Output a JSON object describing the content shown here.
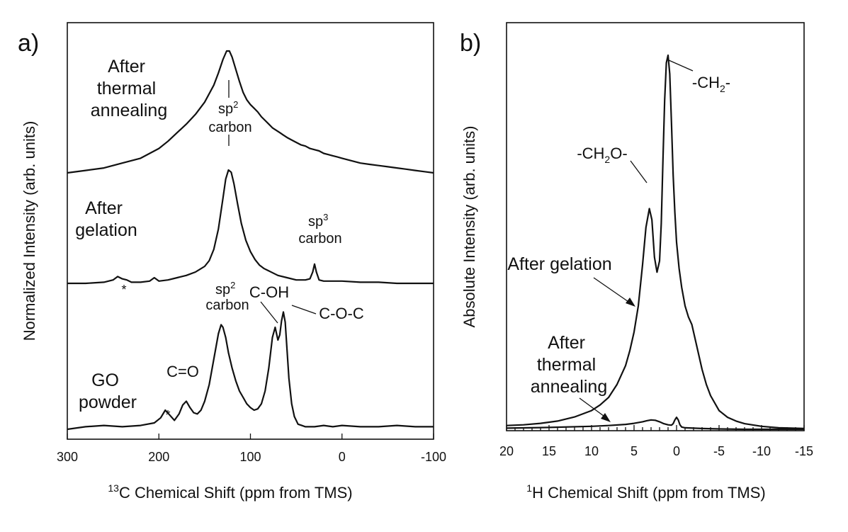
{
  "chart_data": [
    {
      "type": "line",
      "panel_label": "a)",
      "xlabel_sup": "13",
      "xlabel": "C Chemical Shift (ppm from TMS)",
      "ylabel": "Normalized Intensity (arb. units)",
      "xlim": [
        300,
        -100
      ],
      "xticks": [
        300,
        200,
        100,
        0,
        -100
      ],
      "xtick_labels": [
        "300",
        "200",
        "100",
        "0",
        "-100"
      ],
      "series": [
        {
          "name": "After thermal annealing",
          "label_lines": [
            "After",
            "thermal",
            "annealing"
          ],
          "baseline": 0.0,
          "x": [
            300,
            280,
            260,
            240,
            220,
            200,
            190,
            180,
            170,
            160,
            150,
            140,
            135,
            130,
            126,
            123,
            120,
            116,
            112,
            108,
            104,
            100,
            96,
            92,
            88,
            84,
            80,
            76,
            72,
            68,
            64,
            60,
            55,
            50,
            45,
            40,
            35,
            30,
            25,
            20,
            15,
            10,
            5,
            0,
            -10,
            -20,
            -30,
            -40,
            -50,
            -60,
            -70,
            -80,
            -90,
            -100
          ],
          "y": [
            0.0,
            0.02,
            0.04,
            0.08,
            0.12,
            0.2,
            0.26,
            0.33,
            0.4,
            0.48,
            0.58,
            0.72,
            0.82,
            0.93,
            1.0,
            1.0,
            0.95,
            0.85,
            0.75,
            0.66,
            0.6,
            0.56,
            0.53,
            0.5,
            0.46,
            0.43,
            0.4,
            0.37,
            0.35,
            0.33,
            0.31,
            0.29,
            0.27,
            0.25,
            0.23,
            0.22,
            0.2,
            0.19,
            0.18,
            0.16,
            0.15,
            0.14,
            0.13,
            0.12,
            0.1,
            0.08,
            0.07,
            0.06,
            0.05,
            0.04,
            0.03,
            0.02,
            0.01,
            0.0
          ]
        },
        {
          "name": "After gelation",
          "label_lines": [
            "After",
            "gelation"
          ],
          "baseline": 0.0,
          "x": [
            300,
            280,
            260,
            250,
            245,
            240,
            235,
            230,
            220,
            210,
            205,
            200,
            190,
            180,
            170,
            160,
            150,
            145,
            140,
            135,
            130,
            127,
            124,
            121,
            118,
            114,
            110,
            105,
            100,
            95,
            90,
            85,
            80,
            70,
            60,
            50,
            40,
            35,
            32,
            30,
            28,
            25,
            20,
            10,
            0,
            -20,
            -40,
            -60,
            -80,
            -100
          ],
          "y": [
            0.0,
            0.0,
            0.01,
            0.03,
            0.06,
            0.04,
            0.03,
            0.01,
            0.01,
            0.02,
            0.05,
            0.02,
            0.03,
            0.05,
            0.07,
            0.1,
            0.15,
            0.2,
            0.3,
            0.48,
            0.75,
            0.92,
            1.0,
            0.98,
            0.88,
            0.7,
            0.53,
            0.38,
            0.28,
            0.21,
            0.16,
            0.13,
            0.11,
            0.07,
            0.05,
            0.03,
            0.03,
            0.04,
            0.1,
            0.17,
            0.1,
            0.03,
            0.02,
            0.02,
            0.02,
            0.01,
            0.01,
            0.0,
            0.0,
            0.0
          ]
        },
        {
          "name": "GO powder",
          "label_lines": [
            "GO",
            "powder"
          ],
          "baseline": 0.0,
          "x": [
            300,
            280,
            260,
            240,
            220,
            205,
            198,
            193,
            188,
            183,
            178,
            174,
            170,
            166,
            162,
            158,
            154,
            150,
            145,
            140,
            135,
            132,
            130,
            127,
            124,
            120,
            116,
            112,
            108,
            104,
            100,
            96,
            92,
            88,
            84,
            80,
            76,
            73,
            70,
            68,
            66,
            64,
            62,
            60,
            58,
            55,
            52,
            48,
            44,
            40,
            30,
            20,
            10,
            0,
            -20,
            -40,
            -60,
            -80,
            -100
          ],
          "y": [
            0.0,
            0.02,
            0.03,
            0.02,
            0.03,
            0.05,
            0.09,
            0.15,
            0.11,
            0.07,
            0.12,
            0.19,
            0.22,
            0.17,
            0.13,
            0.12,
            0.15,
            0.22,
            0.35,
            0.55,
            0.75,
            0.82,
            0.8,
            0.72,
            0.6,
            0.48,
            0.38,
            0.3,
            0.25,
            0.2,
            0.17,
            0.15,
            0.16,
            0.2,
            0.3,
            0.48,
            0.72,
            0.8,
            0.7,
            0.74,
            0.85,
            0.92,
            0.84,
            0.62,
            0.4,
            0.2,
            0.1,
            0.04,
            0.03,
            0.02,
            0.02,
            0.03,
            0.02,
            0.03,
            0.02,
            0.02,
            0.03,
            0.02,
            0.02
          ]
        }
      ],
      "annotations": [
        {
          "text": "sp",
          "sup": "2",
          "line2": "carbon",
          "note": "sp2 carbon (thermal annealing)"
        },
        {
          "text": "sp",
          "sup": "3",
          "line2": "carbon",
          "note": "sp3 carbon (gelation)"
        },
        {
          "text": "sp",
          "sup": "2",
          "line2": "carbon",
          "note": "sp2 carbon (GO powder)"
        },
        {
          "text": "C-OH"
        },
        {
          "text": "C-O-C"
        },
        {
          "text": "C=O"
        },
        {
          "text": "*"
        },
        {
          "text": "*"
        }
      ]
    },
    {
      "type": "line",
      "panel_label": "b)",
      "xlabel_sup": "1",
      "xlabel": "H  Chemical Shift (ppm from TMS)",
      "ylabel": "Absolute Intensity (arb. units)",
      "xlim": [
        20,
        -15
      ],
      "xticks": [
        20,
        15,
        10,
        5,
        0,
        -5,
        -10,
        -15
      ],
      "xtick_labels": [
        "20",
        "15",
        "10",
        "5",
        "0",
        "-5",
        "-10",
        "-15"
      ],
      "ylim": [
        0,
        1.0
      ],
      "series": [
        {
          "name": "After gelation",
          "x": [
            20,
            18,
            16,
            14,
            12,
            10,
            9,
            8,
            7,
            6,
            5.5,
            5,
            4.5,
            4,
            3.6,
            3.2,
            2.9,
            2.6,
            2.3,
            2.0,
            1.8,
            1.6,
            1.4,
            1.2,
            1.0,
            0.8,
            0.6,
            0.4,
            0.2,
            0.0,
            -0.3,
            -0.6,
            -1.0,
            -1.4,
            -1.8,
            -2.2,
            -2.6,
            -3.0,
            -3.5,
            -4,
            -5,
            -6,
            -7,
            -8,
            -10,
            -12,
            -15
          ],
          "y": [
            0.01,
            0.012,
            0.016,
            0.022,
            0.033,
            0.05,
            0.065,
            0.085,
            0.12,
            0.17,
            0.21,
            0.26,
            0.33,
            0.44,
            0.54,
            0.59,
            0.56,
            0.46,
            0.42,
            0.45,
            0.55,
            0.72,
            0.88,
            0.98,
            1.0,
            0.95,
            0.82,
            0.68,
            0.58,
            0.5,
            0.43,
            0.38,
            0.33,
            0.3,
            0.28,
            0.24,
            0.2,
            0.16,
            0.12,
            0.09,
            0.05,
            0.032,
            0.022,
            0.015,
            0.008,
            0.004,
            0.002
          ]
        },
        {
          "name": "After thermal annealing",
          "x": [
            20,
            15,
            10,
            8,
            6,
            5,
            4,
            3.5,
            3,
            2.5,
            2,
            1.5,
            1,
            0.6,
            0.4,
            0.2,
            0.0,
            -0.2,
            -0.4,
            -0.6,
            -1,
            -2,
            -3,
            -5,
            -8,
            -10,
            -15
          ],
          "y": [
            0.003,
            0.005,
            0.008,
            0.01,
            0.013,
            0.016,
            0.02,
            0.023,
            0.025,
            0.024,
            0.02,
            0.015,
            0.012,
            0.011,
            0.015,
            0.025,
            0.032,
            0.025,
            0.012,
            0.006,
            0.004,
            0.003,
            0.002,
            0.001,
            0.0,
            0.0,
            0.0
          ]
        }
      ],
      "annotations": [
        {
          "text": "-CH",
          "sub": "2",
          "tail": "-"
        },
        {
          "text": "-CH",
          "sub": "2",
          "tail": "O-"
        },
        {
          "text": "After gelation"
        },
        {
          "text": "After",
          "line2": "thermal",
          "line3": "annealing"
        }
      ]
    }
  ]
}
